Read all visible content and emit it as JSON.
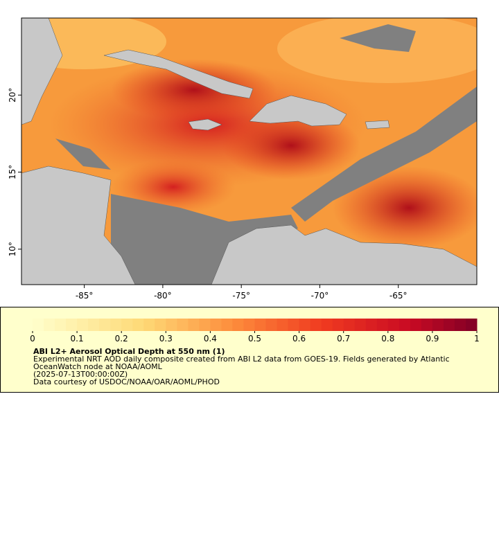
{
  "map": {
    "xlim": [
      -89,
      -60
    ],
    "ylim": [
      7.7,
      25
    ],
    "xticks": [
      {
        "value": -85,
        "label": "-85°"
      },
      {
        "value": -80,
        "label": "-80°"
      },
      {
        "value": -75,
        "label": "-75°"
      },
      {
        "value": -70,
        "label": "-70°"
      },
      {
        "value": -65,
        "label": "-65°"
      }
    ],
    "yticks": [
      {
        "value": 10,
        "label": "10°"
      },
      {
        "value": 15,
        "label": "15°"
      },
      {
        "value": 20,
        "label": "20°"
      }
    ]
  },
  "colorbar": {
    "range": [
      0,
      1
    ],
    "ticks": [
      0,
      0.1,
      0.2,
      0.3,
      0.4,
      0.5,
      0.6,
      0.7,
      0.8,
      0.9,
      1
    ]
  },
  "legend": {
    "title": "ABI L2+ Aerosol Optical Depth at 550 nm (1)",
    "lines": [
      "Experimental NRT AOD daily composite created from ABI L2 data from GOES-19. Fields generated by Atlantic",
      "OceanWatch node at NOAA/AOML",
      "(2025-07-13T00:00:00Z)",
      "Data courtesy of USDOC/NOAA/OAR/AOML/PHOD"
    ]
  }
}
